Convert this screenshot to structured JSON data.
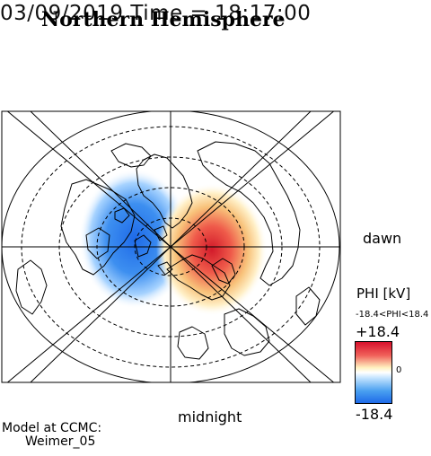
{
  "header": {
    "time_label": "03/09/2019 Time = 18:17:00",
    "title": "Northern Hemisphere"
  },
  "map": {
    "projection": "polar stereographic",
    "hemisphere": "north",
    "latitude_circles": "dashed",
    "meridian_lines": "solid",
    "coastlines": "black outline"
  },
  "orientation": {
    "right_label": "dawn",
    "bottom_label": "midnight"
  },
  "potential_pattern": {
    "negative_cell": "dusk side (left), blue",
    "positive_cell": "dawn side (right), red"
  },
  "colorbar": {
    "label": "PHI [kV]",
    "range_text": "-18.4<PHI<18.4",
    "max_label": "+18.4",
    "zero_label": "0",
    "min_label": "-18.4",
    "max_color": "#d8102c",
    "mid_color": "#ffffff",
    "min_color": "#1e6ae8"
  },
  "model": {
    "line1": "Model at CCMC:",
    "line2": "Weimer_05"
  }
}
